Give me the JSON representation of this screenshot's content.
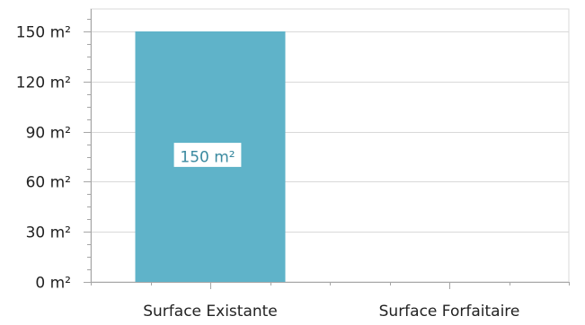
{
  "chart_data": {
    "type": "bar",
    "categories": [
      "Surface Existante",
      "Surface Forfaitaire"
    ],
    "values": [
      150,
      0
    ],
    "data_labels": [
      "150 m²",
      ""
    ],
    "unit": "m²",
    "ylim": [
      0,
      150
    ],
    "yticks": [
      0,
      30,
      60,
      90,
      120,
      150
    ],
    "ytick_labels": [
      "0 m²",
      "30 m²",
      "60 m²",
      "90 m²",
      "120 m²",
      "150 m²"
    ],
    "grid": "horizontal",
    "colors": {
      "bar": "#5fb3c9",
      "grid": "#d9d9d9",
      "axis": "#a6a6a6",
      "label_text": "#3b8aa0",
      "label_border": "#5fb3c9"
    }
  }
}
